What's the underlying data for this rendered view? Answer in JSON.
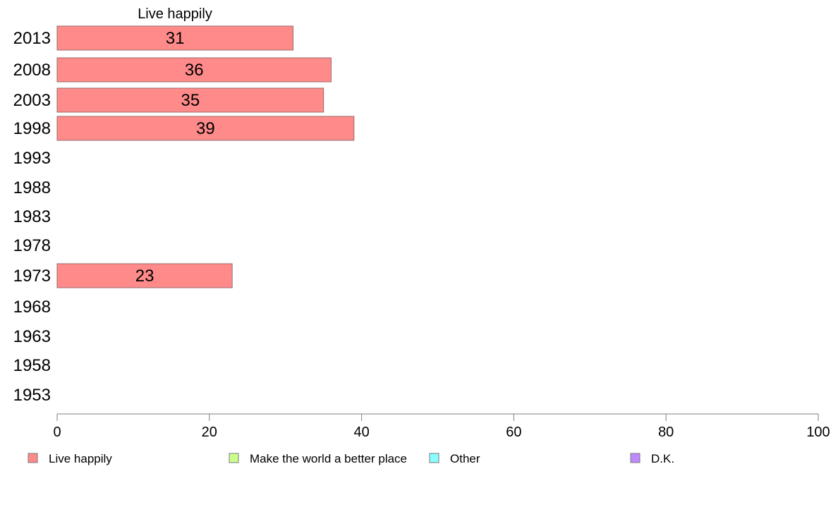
{
  "chart_data": {
    "type": "bar",
    "orientation": "horizontal",
    "title": "Live happily",
    "categories": [
      "2013",
      "2008",
      "2003",
      "1998",
      "1993",
      "1988",
      "1983",
      "1978",
      "1973",
      "1968",
      "1963",
      "1958",
      "1953"
    ],
    "series": [
      {
        "name": "Live happily",
        "color": "#ff8a8a",
        "values": [
          31,
          36,
          35,
          39,
          null,
          null,
          null,
          null,
          23,
          null,
          null,
          null,
          null
        ]
      }
    ],
    "xlim": [
      0,
      100
    ],
    "xticks": [
      0,
      20,
      40,
      60,
      80,
      100
    ],
    "grid": false,
    "legend": {
      "placement": "bottom",
      "items": [
        {
          "label": "Live happily",
          "color": "#ff8a8a"
        },
        {
          "label": "Make the world a better place",
          "color": "#ccff8a"
        },
        {
          "label": "Other",
          "color": "#8affff"
        },
        {
          "label": "D.K.",
          "color": "#c08aff"
        }
      ]
    }
  }
}
